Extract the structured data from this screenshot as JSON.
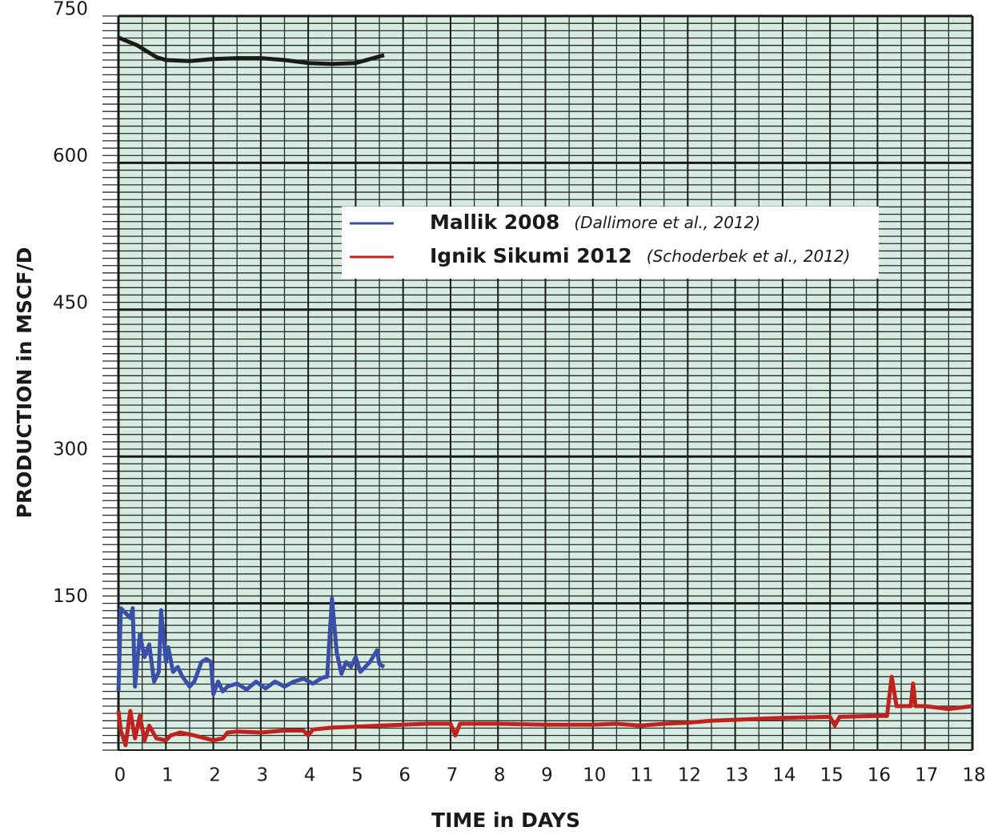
{
  "chart_data": {
    "type": "line",
    "x_label": "TIME in DAYS",
    "y_label": "PRODUCTION  in  MSCF/D",
    "xlim": [
      0,
      18
    ],
    "ylim": [
      0,
      750
    ],
    "xticks": [
      0,
      1,
      2,
      3,
      4,
      5,
      6,
      7,
      8,
      9,
      10,
      11,
      12,
      13,
      14,
      15,
      16,
      17,
      18
    ],
    "yticks": [
      150,
      300,
      450,
      600,
      750
    ],
    "grid": true,
    "background": "#d6ece1",
    "legend": "top-center",
    "series": [
      {
        "color": "#1a1a1a",
        "x": [
          0,
          0.4,
          0.8,
          1,
          1.5,
          2,
          2.5,
          3,
          3.5,
          4,
          4.5,
          5,
          5.3,
          5.6
        ],
        "values": [
          728,
          720,
          708,
          705,
          704,
          706,
          707,
          707,
          705,
          702,
          701,
          702,
          706,
          710
        ]
      },
      {
        "name": "Mallik 2008",
        "citation": "(Dallimore et al., 2012)",
        "color": "#3a4fa8",
        "x": [
          0,
          0.05,
          0.15,
          0.25,
          0.3,
          0.35,
          0.45,
          0.55,
          0.65,
          0.75,
          0.85,
          0.9,
          1.0,
          1.05,
          1.15,
          1.25,
          1.35,
          1.5,
          1.6,
          1.75,
          1.85,
          1.95,
          2.0,
          2.1,
          2.2,
          2.3,
          2.5,
          2.7,
          2.9,
          3.1,
          3.3,
          3.5,
          3.7,
          3.9,
          4.1,
          4.3,
          4.4,
          4.5,
          4.6,
          4.7,
          4.8,
          4.9,
          5.0,
          5.1,
          5.3,
          5.45,
          5.5,
          5.6
        ],
        "values": [
          60,
          145,
          140,
          135,
          145,
          65,
          118,
          95,
          108,
          70,
          80,
          143,
          90,
          105,
          80,
          85,
          75,
          65,
          70,
          90,
          93,
          90,
          57,
          70,
          60,
          65,
          68,
          62,
          70,
          63,
          70,
          65,
          70,
          73,
          68,
          74,
          75,
          155,
          100,
          78,
          90,
          85,
          95,
          80,
          90,
          102,
          88,
          85
        ]
      },
      {
        "name": "Ignik Sikumi 2012",
        "citation": "(Schoderbek et al., 2012)",
        "color": "#c0231e",
        "x": [
          0,
          0.05,
          0.15,
          0.25,
          0.35,
          0.45,
          0.55,
          0.65,
          0.8,
          1.0,
          1.1,
          1.3,
          1.6,
          2.0,
          2.2,
          2.3,
          2.5,
          3.0,
          3.5,
          3.9,
          4.0,
          4.1,
          4.5,
          5,
          5.5,
          6,
          6.5,
          7,
          7.1,
          7.2,
          8,
          9,
          10,
          10.5,
          11,
          11.5,
          12,
          12.5,
          13,
          13.5,
          14,
          15,
          15.1,
          15.2,
          16,
          16.2,
          16.3,
          16.4,
          16.7,
          16.75,
          16.8,
          17,
          17.5,
          18
        ],
        "values": [
          40,
          20,
          5,
          40,
          12,
          35,
          10,
          25,
          12,
          10,
          15,
          18,
          15,
          10,
          12,
          18,
          19,
          18,
          20,
          20,
          15,
          21,
          23,
          24,
          25,
          26,
          27,
          27,
          15,
          27,
          27,
          26,
          26,
          27,
          25,
          27,
          28,
          30,
          31,
          32,
          33,
          34,
          25,
          34,
          35,
          35,
          75,
          45,
          45,
          68,
          45,
          45,
          42,
          45
        ]
      }
    ]
  }
}
